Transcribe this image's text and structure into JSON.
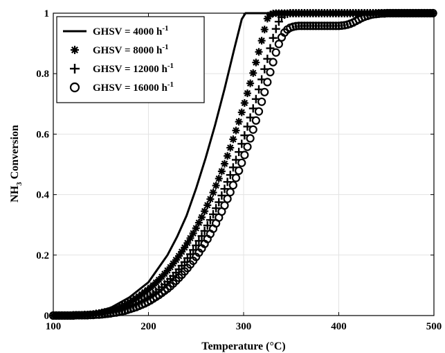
{
  "chart_data": {
    "type": "scatter",
    "xlabel": "Temperature (°C)",
    "ylabel_main": "NH",
    "ylabel_sub": "3",
    "ylabel_rest": " Conversion",
    "xlim": [
      100,
      500
    ],
    "ylim": [
      0,
      1
    ],
    "xticks": [
      "100",
      "200",
      "300",
      "400",
      "500"
    ],
    "yticks": [
      "0",
      "0.2",
      "0.4",
      "0.6",
      "0.8",
      "1"
    ],
    "grid": true,
    "legend_position": "top-left",
    "series": [
      {
        "name": "GHSV = 4000 h",
        "name_sup": "-1",
        "style": "line",
        "x": [
          100,
          140,
          160,
          180,
          200,
          220,
          230,
          240,
          250,
          260,
          270,
          280,
          290,
          298,
          302,
          310,
          400,
          500
        ],
        "y": [
          0,
          0.008,
          0.025,
          0.06,
          0.11,
          0.2,
          0.26,
          0.33,
          0.42,
          0.52,
          0.63,
          0.75,
          0.88,
          0.98,
          1.0,
          1.0,
          1.0,
          1.0
        ]
      },
      {
        "name": "GHSV = 8000 h",
        "name_sup": "-1",
        "style": "asterisk",
        "x": [
          100,
          103,
          106,
          109,
          112,
          115,
          118,
          121,
          124,
          127,
          130,
          133,
          136,
          139,
          142,
          145,
          148,
          151,
          154,
          157,
          160,
          163,
          166,
          169,
          172,
          175,
          178,
          181,
          184,
          187,
          190,
          193,
          196,
          199,
          202,
          205,
          208,
          211,
          214,
          217,
          220,
          223,
          226,
          229,
          232,
          235,
          238,
          241,
          244,
          247,
          250,
          253,
          256,
          259,
          262,
          265,
          268,
          271,
          274,
          277,
          280,
          283,
          286,
          289,
          292,
          295,
          298,
          301,
          304,
          307,
          310,
          313,
          316,
          319,
          322,
          325,
          328,
          331,
          334,
          337,
          340,
          343,
          346,
          349,
          352,
          355,
          358,
          361,
          364,
          367,
          370,
          373,
          376,
          379,
          382,
          385,
          388,
          391,
          394,
          397,
          400,
          403,
          406,
          409,
          412,
          415,
          418,
          421,
          424,
          427,
          430,
          433,
          436,
          439,
          442,
          445,
          448,
          451,
          454,
          457,
          460,
          463,
          466,
          469,
          472,
          475,
          478,
          481,
          484,
          487,
          490,
          493,
          496,
          499
        ],
        "y": [
          0.0,
          0.0,
          0.0,
          0.0,
          0.0,
          0.0,
          0.001,
          0.001,
          0.001,
          0.002,
          0.002,
          0.003,
          0.003,
          0.004,
          0.005,
          0.007,
          0.008,
          0.01,
          0.012,
          0.014,
          0.017,
          0.02,
          0.023,
          0.027,
          0.031,
          0.035,
          0.04,
          0.045,
          0.051,
          0.057,
          0.063,
          0.07,
          0.077,
          0.084,
          0.092,
          0.1,
          0.109,
          0.118,
          0.128,
          0.138,
          0.149,
          0.16,
          0.172,
          0.184,
          0.197,
          0.211,
          0.225,
          0.24,
          0.256,
          0.272,
          0.289,
          0.307,
          0.325,
          0.345,
          0.365,
          0.385,
          0.407,
          0.43,
          0.453,
          0.477,
          0.502,
          0.528,
          0.555,
          0.583,
          0.612,
          0.641,
          0.672,
          0.703,
          0.735,
          0.768,
          0.802,
          0.837,
          0.872,
          0.909,
          0.946,
          0.982,
          0.995,
          0.999,
          1.0,
          1.0,
          1.0,
          1.0,
          1.0,
          1.0,
          1.0,
          1.0,
          1.0,
          1.0,
          1.0,
          1.0,
          1.0,
          1.0,
          1.0,
          1.0,
          1.0,
          1.0,
          1.0,
          1.0,
          1.0,
          1.0,
          1.0,
          1.0,
          1.0,
          1.0,
          1.0,
          1.0,
          1.0,
          1.0,
          1.0,
          1.0,
          1.0,
          1.0,
          1.0,
          1.0,
          1.0,
          1.0,
          1.0,
          1.0,
          1.0,
          1.0,
          1.0,
          1.0,
          1.0,
          1.0,
          1.0,
          1.0,
          1.0,
          1.0,
          1.0,
          1.0,
          1.0,
          1.0,
          1.0,
          1.0
        ]
      },
      {
        "name": "GHSV = 12000 h",
        "name_sup": "-1",
        "style": "plus",
        "x": [
          100,
          103,
          106,
          109,
          112,
          115,
          118,
          121,
          124,
          127,
          130,
          133,
          136,
          139,
          142,
          145,
          148,
          151,
          154,
          157,
          160,
          163,
          166,
          169,
          172,
          175,
          178,
          181,
          184,
          187,
          190,
          193,
          196,
          199,
          202,
          205,
          208,
          211,
          214,
          217,
          220,
          223,
          226,
          229,
          232,
          235,
          238,
          241,
          244,
          247,
          250,
          253,
          256,
          259,
          262,
          265,
          268,
          271,
          274,
          277,
          280,
          283,
          286,
          289,
          292,
          295,
          298,
          301,
          304,
          307,
          310,
          313,
          316,
          319,
          322,
          325,
          328,
          331,
          334,
          337,
          340,
          343,
          346,
          349,
          352,
          355,
          358,
          361,
          364,
          367,
          370,
          373,
          376,
          379,
          382,
          385,
          388,
          391,
          394,
          397,
          400,
          403,
          406,
          409,
          412,
          415,
          418,
          421,
          424,
          427,
          430,
          433,
          436,
          439,
          442,
          445,
          448,
          451,
          454,
          457,
          460,
          463,
          466,
          469,
          472,
          475,
          478,
          481,
          484,
          487,
          490,
          493,
          496,
          499
        ],
        "y": [
          0.0,
          0.0,
          0.0,
          0.0,
          0.0,
          0.0,
          0.0,
          0.001,
          0.001,
          0.001,
          0.001,
          0.002,
          0.002,
          0.002,
          0.003,
          0.004,
          0.005,
          0.006,
          0.007,
          0.008,
          0.01,
          0.012,
          0.014,
          0.016,
          0.019,
          0.022,
          0.025,
          0.029,
          0.033,
          0.037,
          0.042,
          0.047,
          0.052,
          0.058,
          0.064,
          0.071,
          0.078,
          0.086,
          0.094,
          0.103,
          0.112,
          0.121,
          0.131,
          0.142,
          0.153,
          0.165,
          0.177,
          0.19,
          0.203,
          0.217,
          0.232,
          0.247,
          0.263,
          0.28,
          0.298,
          0.316,
          0.335,
          0.355,
          0.375,
          0.397,
          0.419,
          0.442,
          0.465,
          0.49,
          0.515,
          0.541,
          0.568,
          0.596,
          0.625,
          0.655,
          0.685,
          0.716,
          0.748,
          0.781,
          0.815,
          0.849,
          0.884,
          0.918,
          0.948,
          0.972,
          0.987,
          0.995,
          0.998,
          1.0,
          1.0,
          1.0,
          1.0,
          1.0,
          1.0,
          1.0,
          1.0,
          1.0,
          1.0,
          1.0,
          1.0,
          1.0,
          1.0,
          1.0,
          1.0,
          1.0,
          1.0,
          1.0,
          1.0,
          1.0,
          1.0,
          1.0,
          1.0,
          1.0,
          1.0,
          1.0,
          1.0,
          1.0,
          1.0,
          1.0,
          1.0,
          1.0,
          1.0,
          1.0,
          1.0,
          1.0,
          1.0,
          1.0,
          1.0,
          1.0,
          1.0,
          1.0,
          1.0,
          1.0,
          1.0,
          1.0,
          1.0,
          1.0,
          1.0,
          1.0
        ]
      },
      {
        "name": "GHSV = 16000 h",
        "name_sup": "-1",
        "style": "circle",
        "x": [
          100,
          103,
          106,
          109,
          112,
          115,
          118,
          121,
          124,
          127,
          130,
          133,
          136,
          139,
          142,
          145,
          148,
          151,
          154,
          157,
          160,
          163,
          166,
          169,
          172,
          175,
          178,
          181,
          184,
          187,
          190,
          193,
          196,
          199,
          202,
          205,
          208,
          211,
          214,
          217,
          220,
          223,
          226,
          229,
          232,
          235,
          238,
          241,
          244,
          247,
          250,
          253,
          256,
          259,
          262,
          265,
          268,
          271,
          274,
          277,
          280,
          283,
          286,
          289,
          292,
          295,
          298,
          301,
          304,
          307,
          310,
          313,
          316,
          319,
          322,
          325,
          328,
          331,
          334,
          337,
          340,
          343,
          346,
          349,
          352,
          355,
          358,
          361,
          364,
          367,
          370,
          373,
          376,
          379,
          382,
          385,
          388,
          391,
          394,
          397,
          400,
          403,
          406,
          409,
          412,
          415,
          418,
          421,
          424,
          427,
          430,
          433,
          436,
          439,
          442,
          445,
          448,
          451,
          454,
          457,
          460,
          463,
          466,
          469,
          472,
          475,
          478,
          481,
          484,
          487,
          490,
          493,
          496,
          499
        ],
        "y": [
          0.0,
          0.0,
          0.0,
          0.0,
          0.0,
          0.0,
          0.0,
          0.0,
          0.001,
          0.001,
          0.001,
          0.001,
          0.001,
          0.002,
          0.002,
          0.003,
          0.003,
          0.004,
          0.005,
          0.006,
          0.007,
          0.009,
          0.01,
          0.012,
          0.014,
          0.016,
          0.019,
          0.022,
          0.025,
          0.028,
          0.032,
          0.036,
          0.04,
          0.045,
          0.05,
          0.056,
          0.062,
          0.068,
          0.075,
          0.082,
          0.089,
          0.097,
          0.106,
          0.115,
          0.125,
          0.135,
          0.146,
          0.157,
          0.169,
          0.181,
          0.194,
          0.208,
          0.222,
          0.237,
          0.253,
          0.27,
          0.287,
          0.305,
          0.324,
          0.344,
          0.364,
          0.386,
          0.408,
          0.431,
          0.455,
          0.479,
          0.505,
          0.531,
          0.558,
          0.586,
          0.615,
          0.645,
          0.675,
          0.707,
          0.739,
          0.772,
          0.805,
          0.838,
          0.87,
          0.898,
          0.92,
          0.936,
          0.946,
          0.952,
          0.955,
          0.957,
          0.958,
          0.958,
          0.958,
          0.958,
          0.958,
          0.958,
          0.958,
          0.958,
          0.958,
          0.958,
          0.958,
          0.958,
          0.958,
          0.958,
          0.958,
          0.959,
          0.96,
          0.962,
          0.965,
          0.969,
          0.974,
          0.979,
          0.984,
          0.988,
          0.991,
          0.994,
          0.996,
          0.997,
          0.998,
          0.999,
          0.999,
          1.0,
          1.0,
          1.0,
          1.0,
          1.0,
          1.0,
          1.0,
          1.0,
          1.0,
          1.0,
          1.0,
          1.0,
          1.0,
          1.0,
          1.0,
          1.0,
          1.0
        ]
      }
    ]
  }
}
